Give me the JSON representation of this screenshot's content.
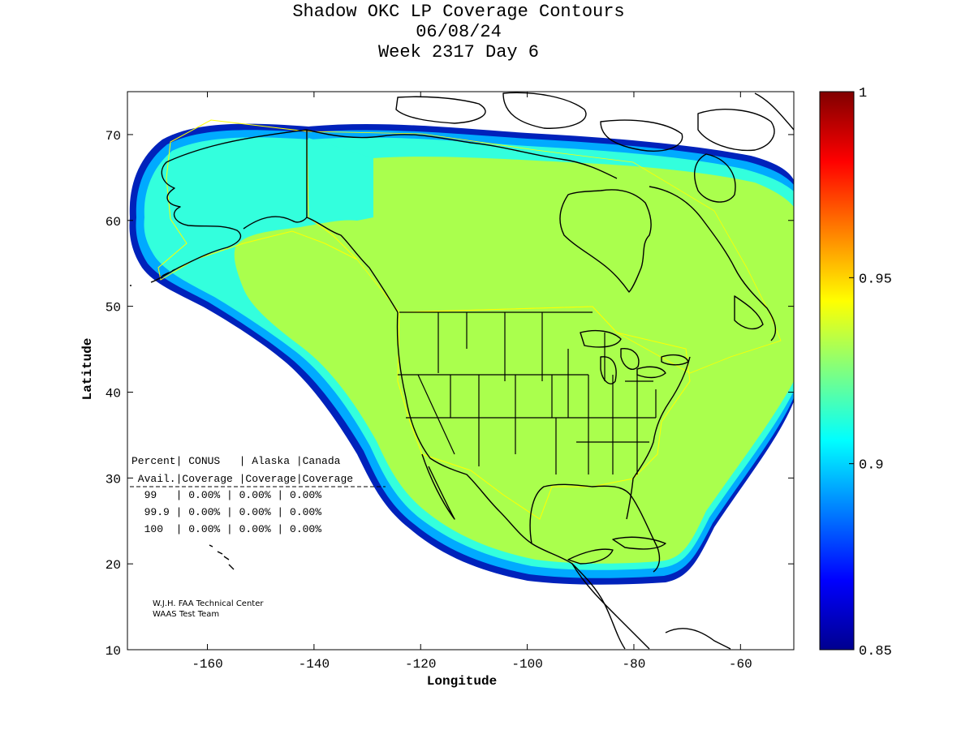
{
  "title": {
    "line1": "Shadow OKC LP Coverage Contours",
    "line2": "06/08/24",
    "line3": "Week 2317 Day 6"
  },
  "axes": {
    "xlabel": "Longitude",
    "ylabel": "Latitude",
    "xlim": [
      -175,
      -50
    ],
    "ylim": [
      10,
      75
    ],
    "xticks": [
      "-160",
      "-140",
      "-120",
      "-100",
      "-80",
      "-60"
    ],
    "xtick_values": [
      -160,
      -140,
      -120,
      -100,
      -80,
      -60
    ],
    "yticks": [
      "10",
      "20",
      "30",
      "40",
      "50",
      "60",
      "70"
    ],
    "ytick_values": [
      10,
      20,
      30,
      40,
      50,
      60,
      70
    ]
  },
  "colorbar": {
    "range": [
      0.85,
      1
    ],
    "labels": [
      "1",
      "0.95",
      "0.9",
      "0.85"
    ],
    "label_values": [
      1,
      0.95,
      0.9,
      0.85
    ],
    "colormap": "jet"
  },
  "table": {
    "header1": "Percent| CONUS   | Alaska |Canada",
    "header2": " Avail.|Coverage |Coverage|Coverage",
    "rows": [
      "  99   | 0.00% | 0.00% | 0.00%",
      "  99.9 | 0.00% | 0.00% | 0.00%",
      "  100  | 0.00% | 0.00% | 0.00%"
    ]
  },
  "credit": {
    "line1": "W.J.H. FAA Technical Center",
    "line2": "WAAS Test Team"
  },
  "colors": {
    "coverage_main": "#aaff4d",
    "coverage_mid": "#33ffcc",
    "coverage_edge": "#00ccff",
    "coverage_rim": "#0033cc",
    "boundary": "#ffff00"
  }
}
